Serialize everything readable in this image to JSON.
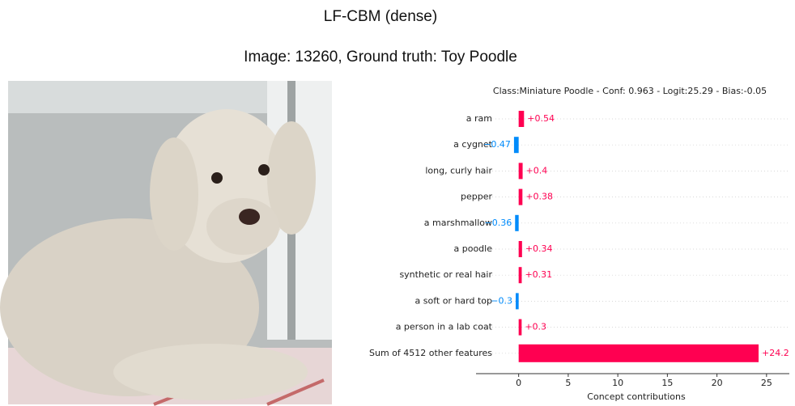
{
  "header": {
    "title": "LF-CBM (dense)",
    "subtitle": "Image: 13260,  Ground truth: Toy Poodle"
  },
  "chart_data": {
    "type": "waterfall-bar",
    "title": "Class:Miniature Poodle - Conf: 0.963 - Logit:25.29 - Bias:-0.05",
    "categories": [
      "a ram",
      "a cygnet",
      "long, curly hair",
      "pepper",
      "a marshmallow",
      "a poodle",
      "synthetic or real hair",
      "a soft or hard top",
      "a person in a lab coat",
      "Sum of 4512 other features"
    ],
    "values": [
      0.54,
      -0.47,
      0.4,
      0.38,
      -0.36,
      0.34,
      0.31,
      -0.3,
      0.3,
      24.2
    ],
    "value_labels": [
      "+0.54",
      "−0.47",
      "+0.4",
      "+0.38",
      "−0.36",
      "+0.34",
      "+0.31",
      "−0.3",
      "+0.3",
      "+24.2"
    ],
    "positive_color": "#ff0051",
    "negative_color": "#008bfb",
    "xlim": [
      -4.3,
      27.3
    ],
    "xticks": [
      0,
      5,
      10,
      15,
      20,
      25
    ],
    "xlabel": "Concept contributions"
  }
}
